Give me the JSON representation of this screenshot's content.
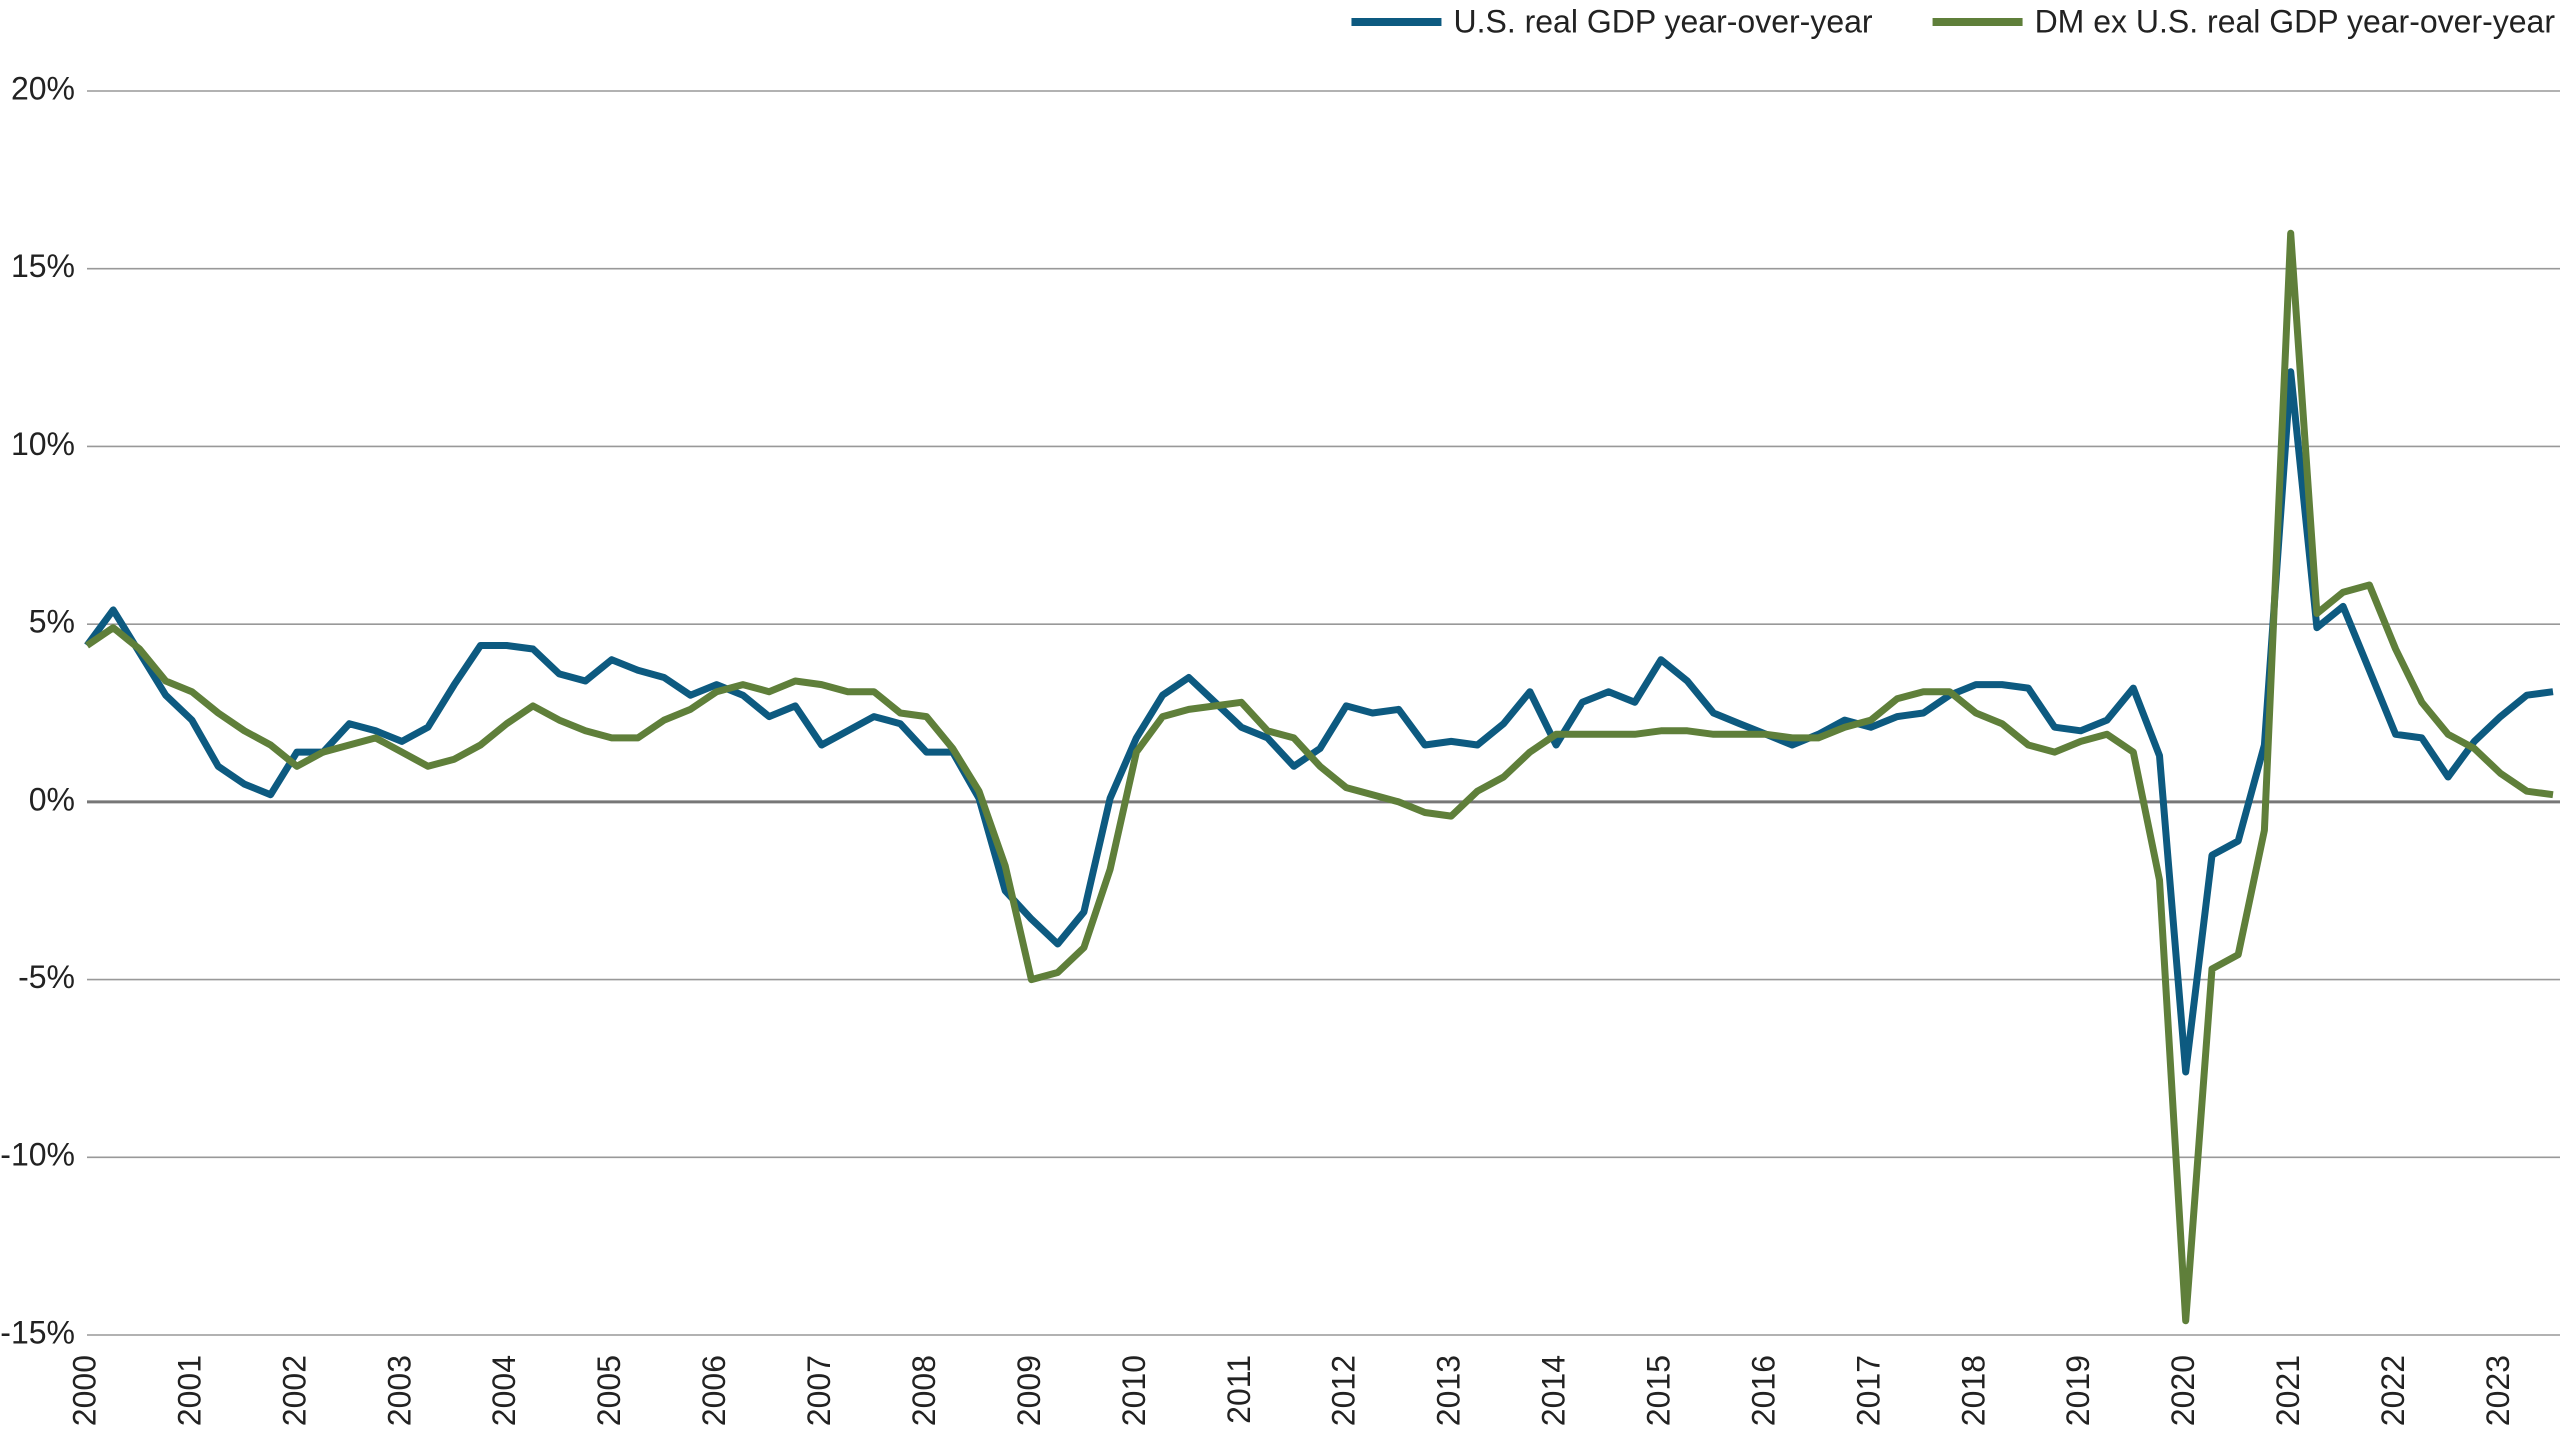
{
  "chart_data": {
    "type": "line",
    "categories": [
      "2000",
      null,
      null,
      null,
      "2001",
      null,
      null,
      null,
      "2002",
      null,
      null,
      null,
      "2003",
      null,
      null,
      null,
      "2004",
      null,
      null,
      null,
      "2005",
      null,
      null,
      null,
      "2006",
      null,
      null,
      null,
      "2007",
      null,
      null,
      null,
      "2008",
      null,
      null,
      null,
      "2009",
      null,
      null,
      null,
      "2010",
      null,
      null,
      null,
      "2011",
      null,
      null,
      null,
      "2012",
      null,
      null,
      null,
      "2013",
      null,
      null,
      null,
      "2014",
      null,
      null,
      null,
      "2015",
      null,
      null,
      null,
      "2016",
      null,
      null,
      null,
      "2017",
      null,
      null,
      null,
      "2018",
      null,
      null,
      null,
      "2019",
      null,
      null,
      null,
      "2020",
      null,
      null,
      null,
      "2021",
      null,
      null,
      null,
      "2022",
      null,
      null,
      null,
      "2023",
      null,
      null
    ],
    "series": [
      {
        "name": "U.S. real GDP year-over-year",
        "color": "#0d5a80",
        "values": [
          4.4,
          5.4,
          4.2,
          3.0,
          2.3,
          1.0,
          0.5,
          0.2,
          1.4,
          1.4,
          2.2,
          2.0,
          1.7,
          2.1,
          3.3,
          4.4,
          4.4,
          4.3,
          3.6,
          3.4,
          4.0,
          3.7,
          3.5,
          3.0,
          3.3,
          3.0,
          2.4,
          2.7,
          1.6,
          2.0,
          2.4,
          2.2,
          1.4,
          1.4,
          0.1,
          -2.5,
          -3.3,
          -4.0,
          -3.1,
          0.1,
          1.8,
          3.0,
          3.5,
          2.8,
          2.1,
          1.8,
          1.0,
          1.5,
          2.7,
          2.5,
          2.6,
          1.6,
          1.7,
          1.6,
          2.2,
          3.1,
          1.6,
          2.8,
          3.1,
          2.8,
          4.0,
          3.4,
          2.5,
          2.2,
          1.9,
          1.6,
          1.9,
          2.3,
          2.1,
          2.4,
          2.5,
          3.0,
          3.3,
          3.3,
          3.2,
          2.1,
          2.0,
          2.3,
          3.2,
          1.3,
          -7.6,
          -1.5,
          -1.1,
          1.6,
          12.1,
          4.9,
          5.5,
          3.7,
          1.9,
          1.8,
          0.7,
          1.7,
          2.4,
          3.0,
          3.1
        ]
      },
      {
        "name": "DM ex U.S. real GDP year-over-year",
        "color": "#5f7f3a",
        "values": [
          4.4,
          4.9,
          4.3,
          3.4,
          3.1,
          2.5,
          2.0,
          1.6,
          1.0,
          1.4,
          1.6,
          1.8,
          1.4,
          1.0,
          1.2,
          1.6,
          2.2,
          2.7,
          2.3,
          2.0,
          1.8,
          1.8,
          2.3,
          2.6,
          3.1,
          3.3,
          3.1,
          3.4,
          3.3,
          3.1,
          3.1,
          2.5,
          2.4,
          1.5,
          0.3,
          -1.8,
          -5.0,
          -4.8,
          -4.1,
          -1.9,
          1.4,
          2.4,
          2.6,
          2.7,
          2.8,
          2.0,
          1.8,
          1.0,
          0.4,
          0.2,
          0.0,
          -0.3,
          -0.4,
          0.3,
          0.7,
          1.4,
          1.9,
          1.9,
          1.9,
          1.9,
          2.0,
          2.0,
          1.9,
          1.9,
          1.9,
          1.8,
          1.8,
          2.1,
          2.3,
          2.9,
          3.1,
          3.1,
          2.5,
          2.2,
          1.6,
          1.4,
          1.7,
          1.9,
          1.4,
          -2.2,
          -14.6,
          -4.7,
          -4.3,
          -0.8,
          16.0,
          5.3,
          5.9,
          6.1,
          4.3,
          2.8,
          1.9,
          1.5,
          0.8,
          0.3,
          0.2
        ]
      }
    ],
    "ylim": [
      -15,
      20
    ],
    "yticks": [
      {
        "value": -15,
        "label": "-15%"
      },
      {
        "value": -10,
        "label": "-10%"
      },
      {
        "value": -5,
        "label": "-5%"
      },
      {
        "value": 0,
        "label": "0%"
      },
      {
        "value": 5,
        "label": "5%"
      },
      {
        "value": 10,
        "label": "10%"
      },
      {
        "value": 15,
        "label": "15%"
      },
      {
        "value": 20,
        "label": "20%"
      }
    ],
    "grid": true,
    "legend": "top-right"
  }
}
